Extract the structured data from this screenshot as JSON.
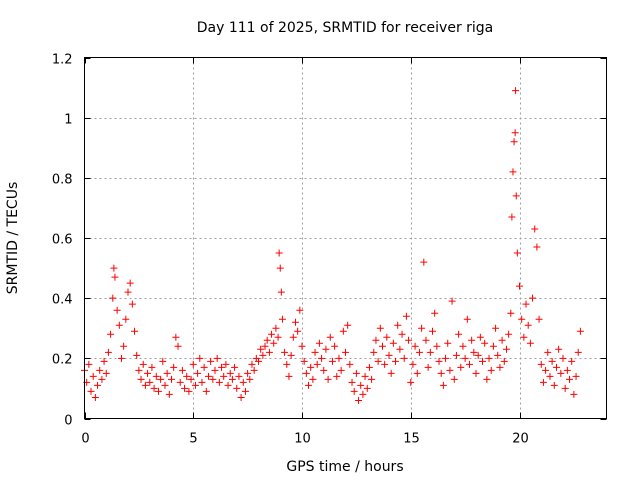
{
  "chart_data": {
    "type": "scatter",
    "title": "Day 111 of 2025, SRMTID for receiver riga",
    "xlabel": "GPS time / hours",
    "ylabel": "SRMTID / TECUs",
    "xlim": [
      0,
      24
    ],
    "ylim": [
      0,
      1.2
    ],
    "xticks": [
      0,
      5,
      10,
      15,
      20
    ],
    "xtick_labels": [
      "0",
      "5",
      "10",
      "15",
      "20"
    ],
    "yticks": [
      0,
      0.2,
      0.4,
      0.6,
      0.8,
      1.0,
      1.2
    ],
    "ytick_labels": [
      "0",
      "0.2",
      "0.4",
      "0.6",
      "0.8",
      "1",
      "1.2"
    ],
    "grid": true,
    "marker": "+",
    "color": "#ff0000",
    "series": [
      {
        "name": "SRMTID",
        "points": [
          [
            0.0,
            0.16
          ],
          [
            0.1,
            0.12
          ],
          [
            0.2,
            0.18
          ],
          [
            0.3,
            0.09
          ],
          [
            0.4,
            0.14
          ],
          [
            0.5,
            0.07
          ],
          [
            0.6,
            0.11
          ],
          [
            0.7,
            0.16
          ],
          [
            0.8,
            0.13
          ],
          [
            0.9,
            0.19
          ],
          [
            1.0,
            0.15
          ],
          [
            1.1,
            0.22
          ],
          [
            1.2,
            0.28
          ],
          [
            1.3,
            0.4
          ],
          [
            1.35,
            0.5
          ],
          [
            1.4,
            0.47
          ],
          [
            1.5,
            0.36
          ],
          [
            1.6,
            0.31
          ],
          [
            1.7,
            0.2
          ],
          [
            1.8,
            0.24
          ],
          [
            1.9,
            0.33
          ],
          [
            2.0,
            0.42
          ],
          [
            2.1,
            0.45
          ],
          [
            2.2,
            0.38
          ],
          [
            2.3,
            0.29
          ],
          [
            2.4,
            0.21
          ],
          [
            2.5,
            0.16
          ],
          [
            2.6,
            0.13
          ],
          [
            2.7,
            0.18
          ],
          [
            2.8,
            0.11
          ],
          [
            2.9,
            0.15
          ],
          [
            3.0,
            0.12
          ],
          [
            3.1,
            0.17
          ],
          [
            3.2,
            0.1
          ],
          [
            3.3,
            0.14
          ],
          [
            3.4,
            0.09
          ],
          [
            3.5,
            0.13
          ],
          [
            3.6,
            0.19
          ],
          [
            3.7,
            0.11
          ],
          [
            3.8,
            0.15
          ],
          [
            3.9,
            0.08
          ],
          [
            4.0,
            0.13
          ],
          [
            4.1,
            0.17
          ],
          [
            4.2,
            0.27
          ],
          [
            4.3,
            0.24
          ],
          [
            4.4,
            0.12
          ],
          [
            4.5,
            0.16
          ],
          [
            4.6,
            0.1
          ],
          [
            4.7,
            0.14
          ],
          [
            4.8,
            0.09
          ],
          [
            4.9,
            0.13
          ],
          [
            5.0,
            0.18
          ],
          [
            5.1,
            0.11
          ],
          [
            5.2,
            0.15
          ],
          [
            5.3,
            0.2
          ],
          [
            5.4,
            0.12
          ],
          [
            5.5,
            0.17
          ],
          [
            5.6,
            0.09
          ],
          [
            5.7,
            0.14
          ],
          [
            5.8,
            0.19
          ],
          [
            5.9,
            0.13
          ],
          [
            6.0,
            0.16
          ],
          [
            6.1,
            0.2
          ],
          [
            6.2,
            0.12
          ],
          [
            6.3,
            0.17
          ],
          [
            6.4,
            0.14
          ],
          [
            6.5,
            0.18
          ],
          [
            6.6,
            0.11
          ],
          [
            6.7,
            0.15
          ],
          [
            6.8,
            0.13
          ],
          [
            6.9,
            0.17
          ],
          [
            7.0,
            0.1
          ],
          [
            7.1,
            0.14
          ],
          [
            7.2,
            0.07
          ],
          [
            7.3,
            0.12
          ],
          [
            7.4,
            0.09
          ],
          [
            7.5,
            0.15
          ],
          [
            7.6,
            0.13
          ],
          [
            7.7,
            0.18
          ],
          [
            7.8,
            0.16
          ],
          [
            7.9,
            0.2
          ],
          [
            8.0,
            0.19
          ],
          [
            8.1,
            0.23
          ],
          [
            8.2,
            0.21
          ],
          [
            8.3,
            0.24
          ],
          [
            8.4,
            0.26
          ],
          [
            8.5,
            0.22
          ],
          [
            8.6,
            0.28
          ],
          [
            8.7,
            0.25
          ],
          [
            8.8,
            0.3
          ],
          [
            8.9,
            0.27
          ],
          [
            8.95,
            0.55
          ],
          [
            9.0,
            0.5
          ],
          [
            9.05,
            0.42
          ],
          [
            9.1,
            0.33
          ],
          [
            9.2,
            0.22
          ],
          [
            9.3,
            0.18
          ],
          [
            9.4,
            0.14
          ],
          [
            9.5,
            0.21
          ],
          [
            9.6,
            0.27
          ],
          [
            9.7,
            0.32
          ],
          [
            9.8,
            0.29
          ],
          [
            9.9,
            0.36
          ],
          [
            10.0,
            0.24
          ],
          [
            10.1,
            0.19
          ],
          [
            10.2,
            0.15
          ],
          [
            10.3,
            0.11
          ],
          [
            10.4,
            0.17
          ],
          [
            10.5,
            0.13
          ],
          [
            10.6,
            0.22
          ],
          [
            10.7,
            0.18
          ],
          [
            10.8,
            0.25
          ],
          [
            10.9,
            0.2
          ],
          [
            11.0,
            0.16
          ],
          [
            11.1,
            0.23
          ],
          [
            11.2,
            0.13
          ],
          [
            11.3,
            0.27
          ],
          [
            11.4,
            0.19
          ],
          [
            11.5,
            0.24
          ],
          [
            11.6,
            0.14
          ],
          [
            11.7,
            0.2
          ],
          [
            11.8,
            0.16
          ],
          [
            11.9,
            0.29
          ],
          [
            12.0,
            0.22
          ],
          [
            12.1,
            0.31
          ],
          [
            12.2,
            0.18
          ],
          [
            12.3,
            0.12
          ],
          [
            12.4,
            0.09
          ],
          [
            12.5,
            0.15
          ],
          [
            12.6,
            0.06
          ],
          [
            12.7,
            0.11
          ],
          [
            12.8,
            0.08
          ],
          [
            12.9,
            0.14
          ],
          [
            13.0,
            0.1
          ],
          [
            13.1,
            0.17
          ],
          [
            13.2,
            0.13
          ],
          [
            13.3,
            0.22
          ],
          [
            13.4,
            0.26
          ],
          [
            13.5,
            0.19
          ],
          [
            13.6,
            0.3
          ],
          [
            13.7,
            0.24
          ],
          [
            13.8,
            0.18
          ],
          [
            13.9,
            0.27
          ],
          [
            14.0,
            0.21
          ],
          [
            14.1,
            0.15
          ],
          [
            14.2,
            0.25
          ],
          [
            14.3,
            0.19
          ],
          [
            14.4,
            0.31
          ],
          [
            14.5,
            0.23
          ],
          [
            14.6,
            0.28
          ],
          [
            14.7,
            0.2
          ],
          [
            14.8,
            0.34
          ],
          [
            14.9,
            0.26
          ],
          [
            15.0,
            0.12
          ],
          [
            15.1,
            0.18
          ],
          [
            15.2,
            0.24
          ],
          [
            15.3,
            0.15
          ],
          [
            15.4,
            0.22
          ],
          [
            15.5,
            0.3
          ],
          [
            15.6,
            0.52
          ],
          [
            15.7,
            0.26
          ],
          [
            15.8,
            0.17
          ],
          [
            15.9,
            0.22
          ],
          [
            16.0,
            0.29
          ],
          [
            16.1,
            0.35
          ],
          [
            16.2,
            0.24
          ],
          [
            16.3,
            0.19
          ],
          [
            16.4,
            0.15
          ],
          [
            16.5,
            0.11
          ],
          [
            16.6,
            0.2
          ],
          [
            16.7,
            0.25
          ],
          [
            16.8,
            0.16
          ],
          [
            16.9,
            0.39
          ],
          [
            17.0,
            0.13
          ],
          [
            17.1,
            0.21
          ],
          [
            17.2,
            0.28
          ],
          [
            17.3,
            0.17
          ],
          [
            17.4,
            0.24
          ],
          [
            17.5,
            0.2
          ],
          [
            17.6,
            0.33
          ],
          [
            17.7,
            0.18
          ],
          [
            17.8,
            0.26
          ],
          [
            17.9,
            0.22
          ],
          [
            18.0,
            0.15
          ],
          [
            18.1,
            0.21
          ],
          [
            18.2,
            0.27
          ],
          [
            18.3,
            0.19
          ],
          [
            18.4,
            0.25
          ],
          [
            18.5,
            0.13
          ],
          [
            18.6,
            0.2
          ],
          [
            18.7,
            0.16
          ],
          [
            18.8,
            0.24
          ],
          [
            18.9,
            0.3
          ],
          [
            19.0,
            0.21
          ],
          [
            19.1,
            0.17
          ],
          [
            19.2,
            0.26
          ],
          [
            19.3,
            0.19
          ],
          [
            19.4,
            0.23
          ],
          [
            19.5,
            0.28
          ],
          [
            19.6,
            0.35
          ],
          [
            19.65,
            0.67
          ],
          [
            19.7,
            0.82
          ],
          [
            19.75,
            0.92
          ],
          [
            19.8,
            0.95
          ],
          [
            19.82,
            1.09
          ],
          [
            19.85,
            0.74
          ],
          [
            19.9,
            0.55
          ],
          [
            20.0,
            0.44
          ],
          [
            20.1,
            0.33
          ],
          [
            20.2,
            0.27
          ],
          [
            20.3,
            0.38
          ],
          [
            20.4,
            0.31
          ],
          [
            20.5,
            0.25
          ],
          [
            20.6,
            0.4
          ],
          [
            20.7,
            0.63
          ],
          [
            20.8,
            0.57
          ],
          [
            20.9,
            0.33
          ],
          [
            21.0,
            0.18
          ],
          [
            21.1,
            0.12
          ],
          [
            21.2,
            0.16
          ],
          [
            21.3,
            0.22
          ],
          [
            21.4,
            0.14
          ],
          [
            21.5,
            0.19
          ],
          [
            21.6,
            0.11
          ],
          [
            21.7,
            0.17
          ],
          [
            21.8,
            0.23
          ],
          [
            21.9,
            0.15
          ],
          [
            22.0,
            0.2
          ],
          [
            22.1,
            0.1
          ],
          [
            22.2,
            0.16
          ],
          [
            22.3,
            0.13
          ],
          [
            22.4,
            0.19
          ],
          [
            22.5,
            0.08
          ],
          [
            22.6,
            0.14
          ],
          [
            22.7,
            0.22
          ],
          [
            22.8,
            0.29
          ]
        ]
      }
    ]
  }
}
